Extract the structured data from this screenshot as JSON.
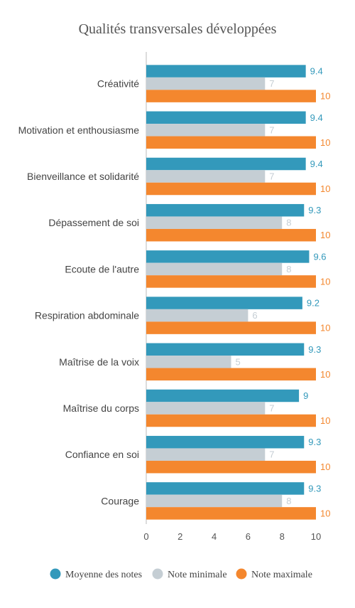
{
  "chart_data": {
    "type": "bar",
    "orientation": "horizontal",
    "title": "Qualités transversales développées",
    "categories": [
      "Créativité",
      "Motivation et enthousiasme",
      "Bienveillance et solidarité",
      "Dépassement de soi",
      "Ecoute de l'autre",
      "Respiration abdominale",
      "Maîtrise de la voix",
      "Maîtrise du corps",
      "Confiance en soi",
      "Courage"
    ],
    "series": [
      {
        "name": "Moyenne des notes",
        "color": "#3399bb",
        "label_color": "#3399bb",
        "values": [
          9.4,
          9.4,
          9.4,
          9.3,
          9.6,
          9.2,
          9.3,
          9,
          9.3,
          9.3
        ]
      },
      {
        "name": "Note minimale",
        "color": "#c5ced4",
        "label_color": "#c5ced4",
        "values": [
          7,
          7,
          7,
          8,
          8,
          6,
          5,
          7,
          7,
          8
        ]
      },
      {
        "name": "Note maximale",
        "color": "#f4872e",
        "label_color": "#f4872e",
        "values": [
          10,
          10,
          10,
          10,
          10,
          10,
          10,
          10,
          10,
          10
        ]
      }
    ],
    "xlim": [
      0,
      10
    ],
    "xticks": [
      0,
      2,
      4,
      6,
      8,
      10
    ],
    "grid": false,
    "legend": "bottom"
  }
}
